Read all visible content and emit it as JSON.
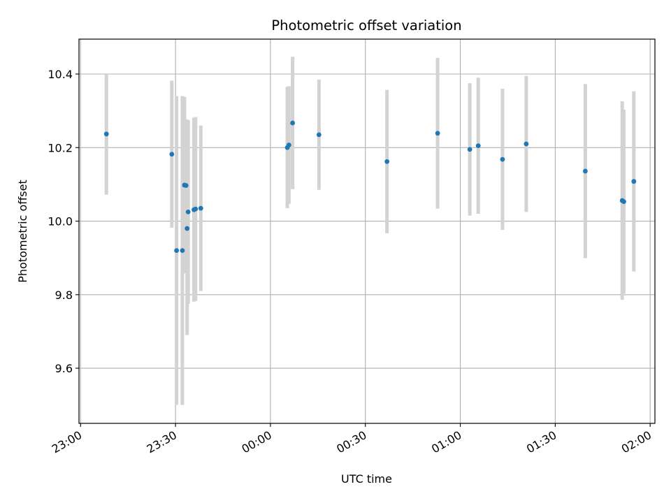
{
  "chart_data": {
    "type": "scatter",
    "title": "Photometric offset variation",
    "xlabel": "UTC time",
    "ylabel": "Photometric offset",
    "x_axis": {
      "type": "time",
      "start": "23:00",
      "ticks": [
        "23:00",
        "23:30",
        "00:00",
        "00:30",
        "01:00",
        "01:30",
        "02:00"
      ],
      "range": [
        "22:59:30",
        "02:01:30"
      ]
    },
    "y_axis": {
      "ticks": [
        "9.6",
        "9.8",
        "10.0",
        "10.2",
        "10.4"
      ],
      "range": [
        9.45,
        10.495
      ]
    },
    "grid": true,
    "marker_color": "#1f77b4",
    "errorbar_color": "#d3d3d3",
    "points": [
      {
        "time": "23:08:10",
        "y": 10.237,
        "err": 0.165
      },
      {
        "time": "23:28:50",
        "y": 10.182,
        "err": 0.2
      },
      {
        "time": "23:30:20",
        "y": 9.92,
        "err": 0.42
      },
      {
        "time": "23:32:10",
        "y": 9.92,
        "err": 0.42
      },
      {
        "time": "23:32:50",
        "y": 10.098,
        "err": 0.24
      },
      {
        "time": "23:33:20",
        "y": 10.097,
        "err": 0.18
      },
      {
        "time": "23:33:40",
        "y": 9.98,
        "err": 0.29
      },
      {
        "time": "23:34:00",
        "y": 10.025,
        "err": 0.25
      },
      {
        "time": "23:35:50",
        "y": 10.031,
        "err": 0.25
      },
      {
        "time": "23:36:20",
        "y": 10.033,
        "err": 0.25
      },
      {
        "time": "23:38:00",
        "y": 10.035,
        "err": 0.225
      },
      {
        "time": "00:05:20",
        "y": 10.2,
        "err": 0.165
      },
      {
        "time": "00:05:50",
        "y": 10.207,
        "err": 0.16
      },
      {
        "time": "00:07:00",
        "y": 10.267,
        "err": 0.18
      },
      {
        "time": "00:15:20",
        "y": 10.235,
        "err": 0.15
      },
      {
        "time": "00:36:50",
        "y": 10.162,
        "err": 0.195
      },
      {
        "time": "00:52:50",
        "y": 10.239,
        "err": 0.205
      },
      {
        "time": "01:03:00",
        "y": 10.195,
        "err": 0.18
      },
      {
        "time": "01:05:40",
        "y": 10.205,
        "err": 0.185
      },
      {
        "time": "01:13:20",
        "y": 10.168,
        "err": 0.192
      },
      {
        "time": "01:20:50",
        "y": 10.21,
        "err": 0.185
      },
      {
        "time": "01:39:30",
        "y": 10.136,
        "err": 0.237
      },
      {
        "time": "01:51:10",
        "y": 10.056,
        "err": 0.27
      },
      {
        "time": "01:51:40",
        "y": 10.053,
        "err": 0.25
      },
      {
        "time": "01:54:50",
        "y": 10.108,
        "err": 0.245
      }
    ]
  }
}
